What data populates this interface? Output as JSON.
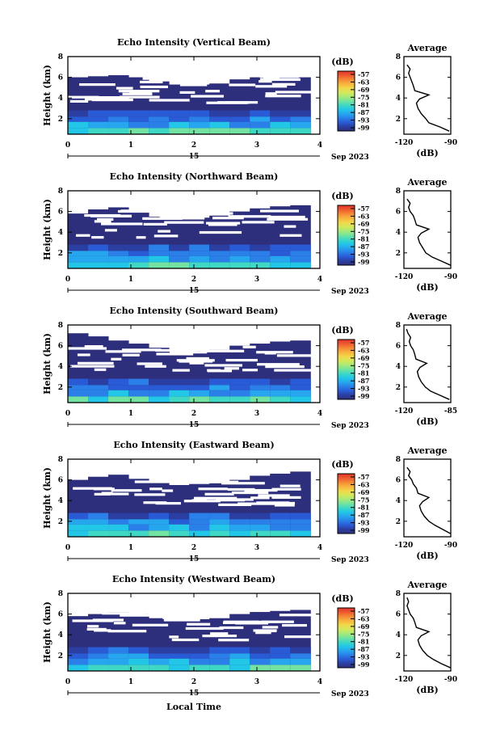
{
  "figure": {
    "xlabel": "Local Time",
    "date_label": "Sep 2023",
    "day_label": "15",
    "avg_title": "Average",
    "avg_xlabel": "(dB)",
    "colorbar_label": "(dB)",
    "colorbar_ticks": [
      "-57",
      "-63",
      "-69",
      "-75",
      "-81",
      "-87",
      "-93",
      "-99"
    ],
    "colormap": [
      "#2e2f7c",
      "#2b3ea2",
      "#2a5bd6",
      "#2a7fe8",
      "#26a6ee",
      "#22c6e6",
      "#3ed8c4",
      "#72e3a0",
      "#a6ea78",
      "#d4e85a",
      "#f2d84a",
      "#f8b43e",
      "#f58a36",
      "#ee5a30",
      "#e0342a"
    ],
    "no_data_color": "#ffffff"
  },
  "chart_data": [
    {
      "type": "heatmap",
      "title": "Echo Intensity (Vertical Beam)",
      "xlabel": "Local Time",
      "ylabel": "Height (km)",
      "xlim": [
        0,
        4
      ],
      "ylim": [
        0.5,
        8
      ],
      "xticks": [
        "0",
        "1",
        "2",
        "3",
        "4"
      ],
      "yticks": [
        "2",
        "4",
        "6",
        "8"
      ],
      "colorbar": {
        "label": "(dB)",
        "range": [
          -99,
          -57
        ],
        "ticks": [
          -57,
          -63,
          -69,
          -75,
          -81,
          -87,
          -93,
          -99
        ]
      },
      "data_top_km": [
        6.0,
        6.1,
        6.2,
        6.0,
        5.6,
        5.3,
        5.3,
        5.4,
        5.8,
        6.0,
        6.0,
        6.0
      ],
      "average_profile": {
        "title": "Average",
        "xlabel": "(dB)",
        "xlim": [
          -120,
          -90
        ],
        "xticks": [
          "-120",
          "-90"
        ],
        "ylim": [
          0.5,
          8
        ],
        "yticks": [
          "2",
          "4",
          "6",
          "8"
        ],
        "height_km": [
          0.8,
          1.2,
          1.6,
          2.0,
          2.5,
          3.0,
          3.5,
          3.9,
          4.3,
          4.7,
          5.2,
          5.6,
          6.0,
          6.4,
          6.8,
          7.2
        ],
        "intensity_db": [
          -91,
          -97,
          -104,
          -106,
          -109,
          -111,
          -112,
          -110,
          -104,
          -113,
          -114,
          -115,
          -116,
          -117,
          -116,
          -118
        ]
      }
    },
    {
      "type": "heatmap",
      "title": "Echo Intensity (Northward Beam)",
      "xlabel": "Local Time",
      "ylabel": "Height (km)",
      "xlim": [
        0,
        4
      ],
      "ylim": [
        0.5,
        8
      ],
      "xticks": [
        "0",
        "1",
        "2",
        "3",
        "4"
      ],
      "yticks": [
        "2",
        "4",
        "6",
        "8"
      ],
      "colorbar": {
        "label": "(dB)",
        "range": [
          -99,
          -57
        ],
        "ticks": [
          -57,
          -63,
          -69,
          -75,
          -81,
          -87,
          -93,
          -99
        ]
      },
      "data_top_km": [
        5.8,
        6.2,
        6.4,
        6.0,
        5.5,
        5.3,
        5.4,
        5.6,
        6.0,
        6.3,
        6.5,
        6.6
      ],
      "average_profile": {
        "title": "Average",
        "xlabel": "(dB)",
        "xlim": [
          -120,
          -90
        ],
        "xticks": [
          "-120",
          "-90"
        ],
        "ylim": [
          0.5,
          8
        ],
        "yticks": [
          "2",
          "4",
          "6",
          "8"
        ],
        "height_km": [
          0.8,
          1.2,
          1.6,
          2.0,
          2.5,
          3.0,
          3.5,
          3.9,
          4.3,
          4.7,
          5.2,
          5.6,
          6.0,
          6.4,
          6.8,
          7.2
        ],
        "intensity_db": [
          -90,
          -96,
          -102,
          -106,
          -108,
          -110,
          -111,
          -109,
          -104,
          -112,
          -113,
          -114,
          -116,
          -117,
          -116,
          -118
        ]
      }
    },
    {
      "type": "heatmap",
      "title": "Echo Intensity (Southward Beam)",
      "xlabel": "Local Time",
      "ylabel": "Height (km)",
      "xlim": [
        0,
        4
      ],
      "ylim": [
        0.5,
        8
      ],
      "xticks": [
        "0",
        "1",
        "2",
        "3",
        "4"
      ],
      "yticks": [
        "2",
        "4",
        "6",
        "8"
      ],
      "colorbar": {
        "label": "(dB)",
        "range": [
          -99,
          -57
        ],
        "ticks": [
          -57,
          -63,
          -69,
          -75,
          -81,
          -87,
          -93,
          -99
        ]
      },
      "data_top_km": [
        7.2,
        6.9,
        6.5,
        6.2,
        5.8,
        5.6,
        5.5,
        5.6,
        6.0,
        6.2,
        6.4,
        6.5
      ],
      "average_profile": {
        "title": "Average",
        "xlabel": "(dB)",
        "xlim": [
          -120,
          -85
        ],
        "xticks": [
          "-120",
          "-85"
        ],
        "ylim": [
          0.5,
          8
        ],
        "yticks": [
          "2",
          "4",
          "6",
          "8"
        ],
        "height_km": [
          0.8,
          1.2,
          1.6,
          2.0,
          2.5,
          3.0,
          3.5,
          3.9,
          4.3,
          4.7,
          5.2,
          5.6,
          6.0,
          6.4,
          6.8,
          7.2,
          7.6
        ],
        "intensity_db": [
          -86,
          -93,
          -100,
          -104,
          -107,
          -109,
          -110,
          -108,
          -103,
          -111,
          -112,
          -113,
          -115,
          -116,
          -115,
          -117,
          -118
        ]
      }
    },
    {
      "type": "heatmap",
      "title": "Echo Intensity (Eastward Beam)",
      "xlabel": "Local Time",
      "ylabel": "Height (km)",
      "xlim": [
        0,
        4
      ],
      "ylim": [
        0.5,
        8
      ],
      "xticks": [
        "0",
        "1",
        "2",
        "3",
        "4"
      ],
      "yticks": [
        "2",
        "4",
        "6",
        "8"
      ],
      "colorbar": {
        "label": "(dB)",
        "range": [
          -99,
          -57
        ],
        "ticks": [
          -57,
          -63,
          -69,
          -75,
          -81,
          -87,
          -93,
          -99
        ]
      },
      "data_top_km": [
        6.0,
        6.3,
        6.5,
        6.1,
        5.7,
        5.5,
        5.6,
        5.8,
        6.0,
        6.4,
        6.6,
        6.8
      ],
      "average_profile": {
        "title": "Average",
        "xlabel": "(dB)",
        "xlim": [
          -120,
          -90
        ],
        "xticks": [
          "-120",
          "-90"
        ],
        "ylim": [
          0.5,
          8
        ],
        "yticks": [
          "2",
          "4",
          "6",
          "8"
        ],
        "height_km": [
          0.8,
          1.2,
          1.6,
          2.0,
          2.5,
          3.0,
          3.5,
          3.9,
          4.3,
          4.7,
          5.2,
          5.6,
          6.0,
          6.4,
          6.8,
          7.2
        ],
        "intensity_db": [
          -90,
          -95,
          -100,
          -104,
          -107,
          -109,
          -110,
          -108,
          -104,
          -111,
          -112,
          -114,
          -115,
          -117,
          -116,
          -118
        ]
      }
    },
    {
      "type": "heatmap",
      "title": "Echo Intensity (Westward Beam)",
      "xlabel": "Local Time",
      "ylabel": "Height (km)",
      "xlim": [
        0,
        4
      ],
      "ylim": [
        0.5,
        8
      ],
      "xticks": [
        "0",
        "1",
        "2",
        "3",
        "4"
      ],
      "yticks": [
        "2",
        "4",
        "6",
        "8"
      ],
      "colorbar": {
        "label": "(dB)",
        "range": [
          -99,
          -57
        ],
        "ticks": [
          -57,
          -63,
          -69,
          -75,
          -81,
          -87,
          -93,
          -99
        ]
      },
      "data_top_km": [
        5.8,
        6.0,
        6.2,
        6.0,
        5.6,
        5.4,
        5.5,
        5.6,
        6.0,
        6.2,
        6.3,
        6.4
      ],
      "average_profile": {
        "title": "Average",
        "xlabel": "(dB)",
        "xlim": [
          -120,
          -90
        ],
        "xticks": [
          "-120",
          "-90"
        ],
        "ylim": [
          0.5,
          8
        ],
        "yticks": [
          "2",
          "4",
          "6",
          "8"
        ],
        "height_km": [
          0.8,
          1.2,
          1.6,
          2.0,
          2.5,
          3.0,
          3.5,
          3.9,
          4.3,
          4.7,
          5.2,
          5.6,
          6.0,
          6.4,
          6.8,
          7.2,
          7.6
        ],
        "intensity_db": [
          -90,
          -96,
          -101,
          -105,
          -108,
          -110,
          -111,
          -109,
          -104,
          -112,
          -113,
          -114,
          -116,
          -117,
          -118,
          -117,
          -118
        ]
      }
    }
  ]
}
